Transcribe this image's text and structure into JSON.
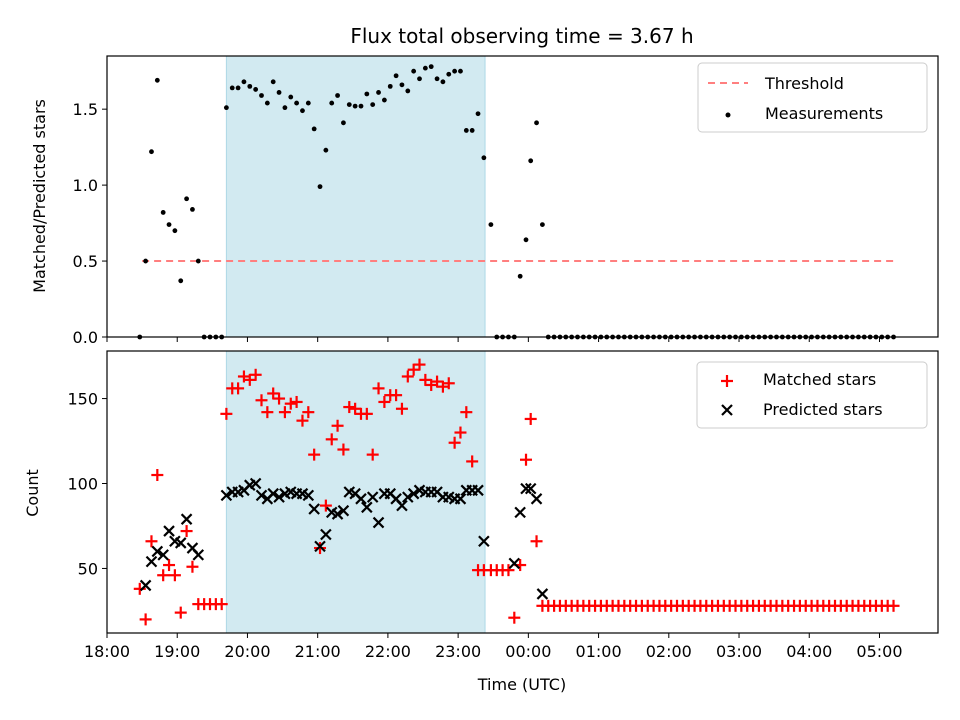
{
  "figure": {
    "title": "Flux total observing time = 3.67 h",
    "xlabel": "Time (UTC)"
  },
  "colors": {
    "shade": "#add8e6",
    "threshold": "#ff7f7f",
    "measurements": "#000000",
    "matched": "#ff0000",
    "predicted": "#000000"
  },
  "chart_data": [
    {
      "type": "scatter",
      "panel": "top",
      "ylabel": "Matched/Predicted stars",
      "xlim": [
        "18:00",
        "05:50"
      ],
      "ylim": [
        0,
        1.85
      ],
      "xticks": [
        "18:00",
        "19:00",
        "20:00",
        "21:00",
        "22:00",
        "23:00",
        "00:00",
        "01:00",
        "02:00",
        "03:00",
        "04:00",
        "05:00"
      ],
      "yticks": [
        "0.0",
        "0.5",
        "1.0",
        "1.5"
      ],
      "shaded_region": [
        "19:42",
        "23:23"
      ],
      "legend": {
        "placement": "upper right",
        "entries": [
          "Threshold",
          "Measurements"
        ]
      },
      "threshold": {
        "name": "Threshold",
        "y": 0.5,
        "x": [
          "18:30",
          "05:15"
        ],
        "style": "dashed"
      },
      "series": [
        {
          "name": "Measurements",
          "marker": "dot",
          "x": [
            "18:28",
            "18:33",
            "18:38",
            "18:43",
            "18:48",
            "18:53",
            "18:58",
            "19:03",
            "19:08",
            "19:13",
            "19:18",
            "19:23",
            "19:28",
            "19:33",
            "19:38",
            "19:42",
            "19:47",
            "19:52",
            "19:57",
            "20:02",
            "20:07",
            "20:12",
            "20:17",
            "20:22",
            "20:27",
            "20:32",
            "20:37",
            "20:42",
            "20:47",
            "20:52",
            "20:57",
            "21:02",
            "21:07",
            "21:12",
            "21:17",
            "21:22",
            "21:27",
            "21:32",
            "21:37",
            "21:42",
            "21:47",
            "21:52",
            "21:57",
            "22:02",
            "22:07",
            "22:12",
            "22:17",
            "22:22",
            "22:27",
            "22:32",
            "22:37",
            "22:42",
            "22:47",
            "22:52",
            "22:57",
            "23:02",
            "23:07",
            "23:12",
            "23:17",
            "23:22",
            "23:28",
            "23:33",
            "23:38",
            "23:43",
            "23:48",
            "23:53",
            "23:58",
            "00:02",
            "00:07",
            "00:12"
          ],
          "y": [
            0.0,
            0.5,
            1.22,
            1.69,
            0.82,
            0.74,
            0.7,
            0.37,
            0.91,
            0.84,
            0.5,
            0.0,
            0.0,
            0.0,
            0.0,
            1.51,
            1.64,
            1.64,
            1.68,
            1.65,
            1.63,
            1.59,
            1.54,
            1.68,
            1.61,
            1.51,
            1.58,
            1.54,
            1.49,
            1.54,
            1.37,
            0.99,
            1.23,
            1.54,
            1.59,
            1.41,
            1.53,
            1.52,
            1.52,
            1.6,
            1.53,
            1.61,
            1.56,
            1.65,
            1.72,
            1.66,
            1.62,
            1.75,
            1.7,
            1.77,
            1.78,
            1.7,
            1.68,
            1.73,
            1.75,
            1.75,
            1.36,
            1.36,
            1.47,
            1.18,
            0.74,
            0.0,
            0.0,
            0.0,
            0.0,
            0.4,
            0.64,
            1.16,
            1.41,
            0.74
          ],
          "tail_zero": {
            "x_start": "00:17",
            "x_end": "05:12",
            "step_minutes": 5,
            "y": 0.0
          }
        }
      ]
    },
    {
      "type": "scatter",
      "panel": "bottom",
      "ylabel": "Count",
      "xlabel": "Time (UTC)",
      "xlim": [
        "18:00",
        "05:50"
      ],
      "ylim": [
        12,
        178
      ],
      "xticks": [
        "18:00",
        "19:00",
        "20:00",
        "21:00",
        "22:00",
        "23:00",
        "00:00",
        "01:00",
        "02:00",
        "03:00",
        "04:00",
        "05:00"
      ],
      "yticks": [
        "50",
        "100",
        "150"
      ],
      "shaded_region": [
        "19:42",
        "23:23"
      ],
      "legend": {
        "placement": "upper right",
        "entries": [
          "Matched stars",
          "Predicted stars"
        ]
      },
      "series": [
        {
          "name": "Matched stars",
          "marker": "plus",
          "x": [
            "18:28",
            "18:33",
            "18:38",
            "18:43",
            "18:48",
            "18:53",
            "18:58",
            "19:03",
            "19:08",
            "19:13",
            "19:18",
            "19:23",
            "19:28",
            "19:33",
            "19:38",
            "19:42",
            "19:47",
            "19:52",
            "19:57",
            "20:02",
            "20:07",
            "20:12",
            "20:17",
            "20:22",
            "20:27",
            "20:32",
            "20:37",
            "20:42",
            "20:47",
            "20:52",
            "20:57",
            "21:02",
            "21:07",
            "21:12",
            "21:17",
            "21:22",
            "21:27",
            "21:32",
            "21:37",
            "21:42",
            "21:47",
            "21:52",
            "21:57",
            "22:02",
            "22:07",
            "22:12",
            "22:17",
            "22:22",
            "22:27",
            "22:32",
            "22:37",
            "22:42",
            "22:47",
            "22:52",
            "22:57",
            "23:02",
            "23:07",
            "23:12",
            "23:17",
            "23:22",
            "23:28",
            "23:33",
            "23:38",
            "23:43",
            "23:48",
            "23:53",
            "23:58",
            "00:02",
            "00:07",
            "00:12"
          ],
          "y": [
            38,
            20,
            66,
            105,
            46,
            52,
            46,
            24,
            72,
            51,
            29,
            29,
            29,
            29,
            29,
            141,
            156,
            156,
            163,
            161,
            164,
            149,
            142,
            153,
            150,
            142,
            147,
            148,
            137,
            142,
            117,
            62,
            87,
            126,
            134,
            120,
            145,
            144,
            141,
            141,
            117,
            156,
            148,
            152,
            152,
            144,
            163,
            167,
            170,
            161,
            158,
            160,
            157,
            159,
            124,
            130,
            142,
            113,
            49,
            49,
            49,
            49,
            49,
            49,
            21,
            52,
            114,
            138,
            66,
            28
          ],
          "tail": {
            "x_start": "00:17",
            "x_end": "05:12",
            "step_minutes": 5,
            "y": 28
          }
        },
        {
          "name": "Predicted stars",
          "marker": "x",
          "x": [
            "18:33",
            "18:38",
            "18:43",
            "18:48",
            "18:53",
            "18:58",
            "19:03",
            "19:08",
            "19:13",
            "19:18",
            "19:42",
            "19:47",
            "19:52",
            "19:57",
            "20:02",
            "20:07",
            "20:12",
            "20:17",
            "20:22",
            "20:27",
            "20:32",
            "20:37",
            "20:42",
            "20:47",
            "20:52",
            "20:57",
            "21:02",
            "21:07",
            "21:12",
            "21:17",
            "21:22",
            "21:27",
            "21:32",
            "21:37",
            "21:42",
            "21:47",
            "21:52",
            "21:57",
            "22:02",
            "22:07",
            "22:12",
            "22:17",
            "22:22",
            "22:27",
            "22:32",
            "22:37",
            "22:42",
            "22:47",
            "22:52",
            "22:57",
            "23:02",
            "23:07",
            "23:12",
            "23:17",
            "23:22",
            "23:48",
            "23:53",
            "23:58",
            "00:02",
            "00:07",
            "00:12"
          ],
          "y": [
            40,
            54,
            60,
            58,
            72,
            66,
            65,
            79,
            62,
            58,
            93,
            95,
            95,
            96,
            99,
            100,
            93,
            91,
            94,
            92,
            94,
            95,
            94,
            94,
            93,
            85,
            63,
            70,
            83,
            82,
            84,
            95,
            94,
            91,
            86,
            92,
            77,
            94,
            94,
            91,
            87,
            92,
            94,
            96,
            95,
            95,
            95,
            92,
            92,
            91,
            91,
            96,
            96,
            96,
            66,
            53,
            83,
            97,
            97,
            91,
            35
          ]
        }
      ]
    }
  ]
}
